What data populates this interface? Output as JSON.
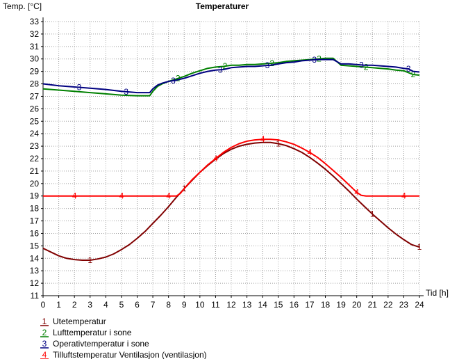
{
  "chart_data": {
    "type": "line",
    "title": "Temperaturer",
    "ylabel": "Temp. [°C]",
    "xlabel": "Tid [h]",
    "xlim": [
      0,
      24
    ],
    "ylim": [
      11,
      33
    ],
    "xticks": [
      0,
      1,
      2,
      3,
      4,
      5,
      6,
      7,
      8,
      9,
      10,
      11,
      12,
      13,
      14,
      15,
      16,
      17,
      18,
      19,
      20,
      21,
      22,
      23,
      24
    ],
    "yticks": [
      11,
      12,
      13,
      14,
      15,
      16,
      17,
      18,
      19,
      20,
      21,
      22,
      23,
      24,
      25,
      26,
      27,
      28,
      29,
      30,
      31,
      32,
      33
    ],
    "grid": true,
    "legend_position": "bottom-left",
    "series": [
      {
        "name": "Utetemperatur",
        "marker": "1",
        "color": "#800000",
        "x": [
          0,
          0.5,
          1,
          1.5,
          2,
          2.5,
          3,
          3.5,
          4,
          4.5,
          5,
          5.5,
          6,
          6.5,
          7,
          7.5,
          8,
          8.5,
          9,
          9.5,
          10,
          10.5,
          11,
          11.5,
          12,
          12.5,
          13,
          13.5,
          14,
          14.5,
          15,
          15.5,
          16,
          16.5,
          17,
          17.5,
          18,
          18.5,
          19,
          19.5,
          20,
          20.5,
          21,
          21.5,
          22,
          22.5,
          23,
          23.5,
          24
        ],
        "values": [
          14.8,
          14.5,
          14.2,
          14.0,
          13.9,
          13.85,
          13.85,
          13.95,
          14.1,
          14.35,
          14.7,
          15.1,
          15.6,
          16.15,
          16.8,
          17.45,
          18.15,
          18.9,
          19.6,
          20.25,
          20.9,
          21.45,
          21.95,
          22.4,
          22.75,
          23.0,
          23.15,
          23.25,
          23.3,
          23.3,
          23.2,
          23.05,
          22.8,
          22.5,
          22.1,
          21.65,
          21.15,
          20.6,
          20.0,
          19.4,
          18.75,
          18.15,
          17.55,
          17.0,
          16.45,
          15.95,
          15.5,
          15.1,
          14.9
        ],
        "marker_x": [
          3,
          9,
          15,
          21,
          24
        ]
      },
      {
        "name": "Lufttemperatur i sone",
        "marker": "2",
        "color": "#008000",
        "x": [
          0,
          1,
          2,
          3,
          4,
          5,
          6,
          6.8,
          7,
          7.3,
          7.6,
          8,
          8.5,
          9,
          9.5,
          10,
          10.5,
          11,
          11.5,
          12,
          12.5,
          13,
          13.5,
          14,
          14.5,
          15,
          15.5,
          16,
          16.5,
          17,
          17.5,
          18,
          18.5,
          19,
          19.5,
          20,
          20.5,
          21,
          21.5,
          22,
          22.5,
          23,
          23.3,
          23.6,
          24
        ],
        "values": [
          27.6,
          27.5,
          27.4,
          27.3,
          27.2,
          27.1,
          27.05,
          27.05,
          27.4,
          27.8,
          28.0,
          28.2,
          28.4,
          28.6,
          28.85,
          29.05,
          29.25,
          29.35,
          29.4,
          29.5,
          29.5,
          29.55,
          29.55,
          29.6,
          29.65,
          29.7,
          29.8,
          29.85,
          29.9,
          29.95,
          30.0,
          30.05,
          30.05,
          29.5,
          29.45,
          29.4,
          29.35,
          29.3,
          29.25,
          29.2,
          29.1,
          29.05,
          28.9,
          28.75,
          28.7
        ],
        "marker_x": [
          8.6,
          11.6,
          14.6,
          17.6,
          20.6,
          23.6
        ]
      },
      {
        "name": "Operativtemperatur i sone",
        "marker": "3",
        "color": "#000080",
        "x": [
          0,
          1,
          2,
          3,
          4,
          5,
          6,
          6.8,
          7,
          7.3,
          7.6,
          8,
          8.5,
          9,
          9.5,
          10,
          10.5,
          11,
          11.5,
          12,
          12.5,
          13,
          13.5,
          14,
          14.5,
          15,
          15.5,
          16,
          16.5,
          17,
          17.5,
          18,
          18.5,
          19,
          19.5,
          20,
          20.5,
          21,
          21.5,
          22,
          22.5,
          23,
          23.3,
          23.6,
          24
        ],
        "values": [
          28.0,
          27.85,
          27.75,
          27.65,
          27.55,
          27.4,
          27.3,
          27.3,
          27.6,
          27.9,
          28.05,
          28.2,
          28.3,
          28.45,
          28.65,
          28.85,
          29.0,
          29.1,
          29.15,
          29.3,
          29.35,
          29.4,
          29.4,
          29.45,
          29.5,
          29.6,
          29.7,
          29.75,
          29.85,
          29.9,
          29.95,
          29.95,
          29.95,
          29.6,
          29.6,
          29.55,
          29.5,
          29.5,
          29.45,
          29.4,
          29.35,
          29.25,
          29.2,
          29.0,
          28.95
        ],
        "marker_x": [
          2.3,
          5.3,
          8.3,
          11.3,
          14.3,
          17.3,
          20.3,
          23.3
        ]
      },
      {
        "name": "Tilluftstemperatur Ventilasjon (ventilasjon)",
        "marker": "4",
        "color": "#ff0000",
        "x": [
          0,
          8.5,
          8.75,
          9,
          9.5,
          10,
          10.5,
          11,
          11.5,
          12,
          12.5,
          13,
          13.5,
          14,
          14.5,
          15,
          15.5,
          16,
          16.5,
          17,
          17.5,
          18,
          18.5,
          19,
          19.5,
          20,
          20.3,
          20.6,
          21,
          24
        ],
        "values": [
          19.0,
          19.0,
          19.2,
          19.6,
          20.3,
          20.9,
          21.5,
          22.0,
          22.5,
          22.9,
          23.2,
          23.4,
          23.5,
          23.55,
          23.55,
          23.5,
          23.35,
          23.15,
          22.85,
          22.5,
          22.1,
          21.6,
          21.05,
          20.5,
          19.9,
          19.3,
          19.05,
          19.0,
          19.0,
          19.0
        ],
        "marker_x": [
          2,
          5,
          8,
          11,
          14,
          17,
          20,
          23
        ]
      }
    ]
  }
}
